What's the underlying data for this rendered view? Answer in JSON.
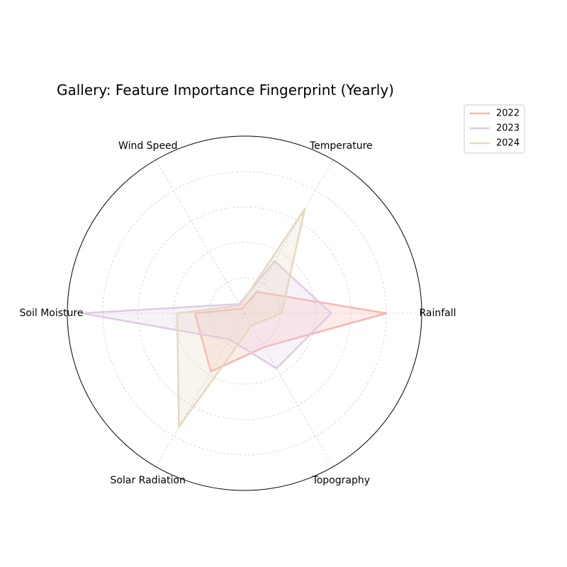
{
  "chart_data": {
    "type": "radar",
    "title": "Gallery: Feature Importance Fingerprint (Yearly)",
    "axes": [
      "Rainfall",
      "Temperature",
      "Wind Speed",
      "Soil Moisture",
      "Solar Radiation",
      "Topography"
    ],
    "rmax": 1.0,
    "grid_levels": [
      0.2,
      0.4,
      0.6,
      0.8
    ],
    "grid": true,
    "legend_position": "top-right",
    "series": [
      {
        "name": "2022",
        "color": "#FBB4AE",
        "values": [
          0.8,
          0.14,
          0.03,
          0.28,
          0.38,
          0.22
        ]
      },
      {
        "name": "2023",
        "color": "#DECBE4",
        "values": [
          0.49,
          0.34,
          0.06,
          0.92,
          0.17,
          0.36
        ]
      },
      {
        "name": "2024",
        "color": "#E5D8BD",
        "values": [
          0.21,
          0.68,
          0.05,
          0.38,
          0.74,
          0.08
        ]
      }
    ]
  }
}
